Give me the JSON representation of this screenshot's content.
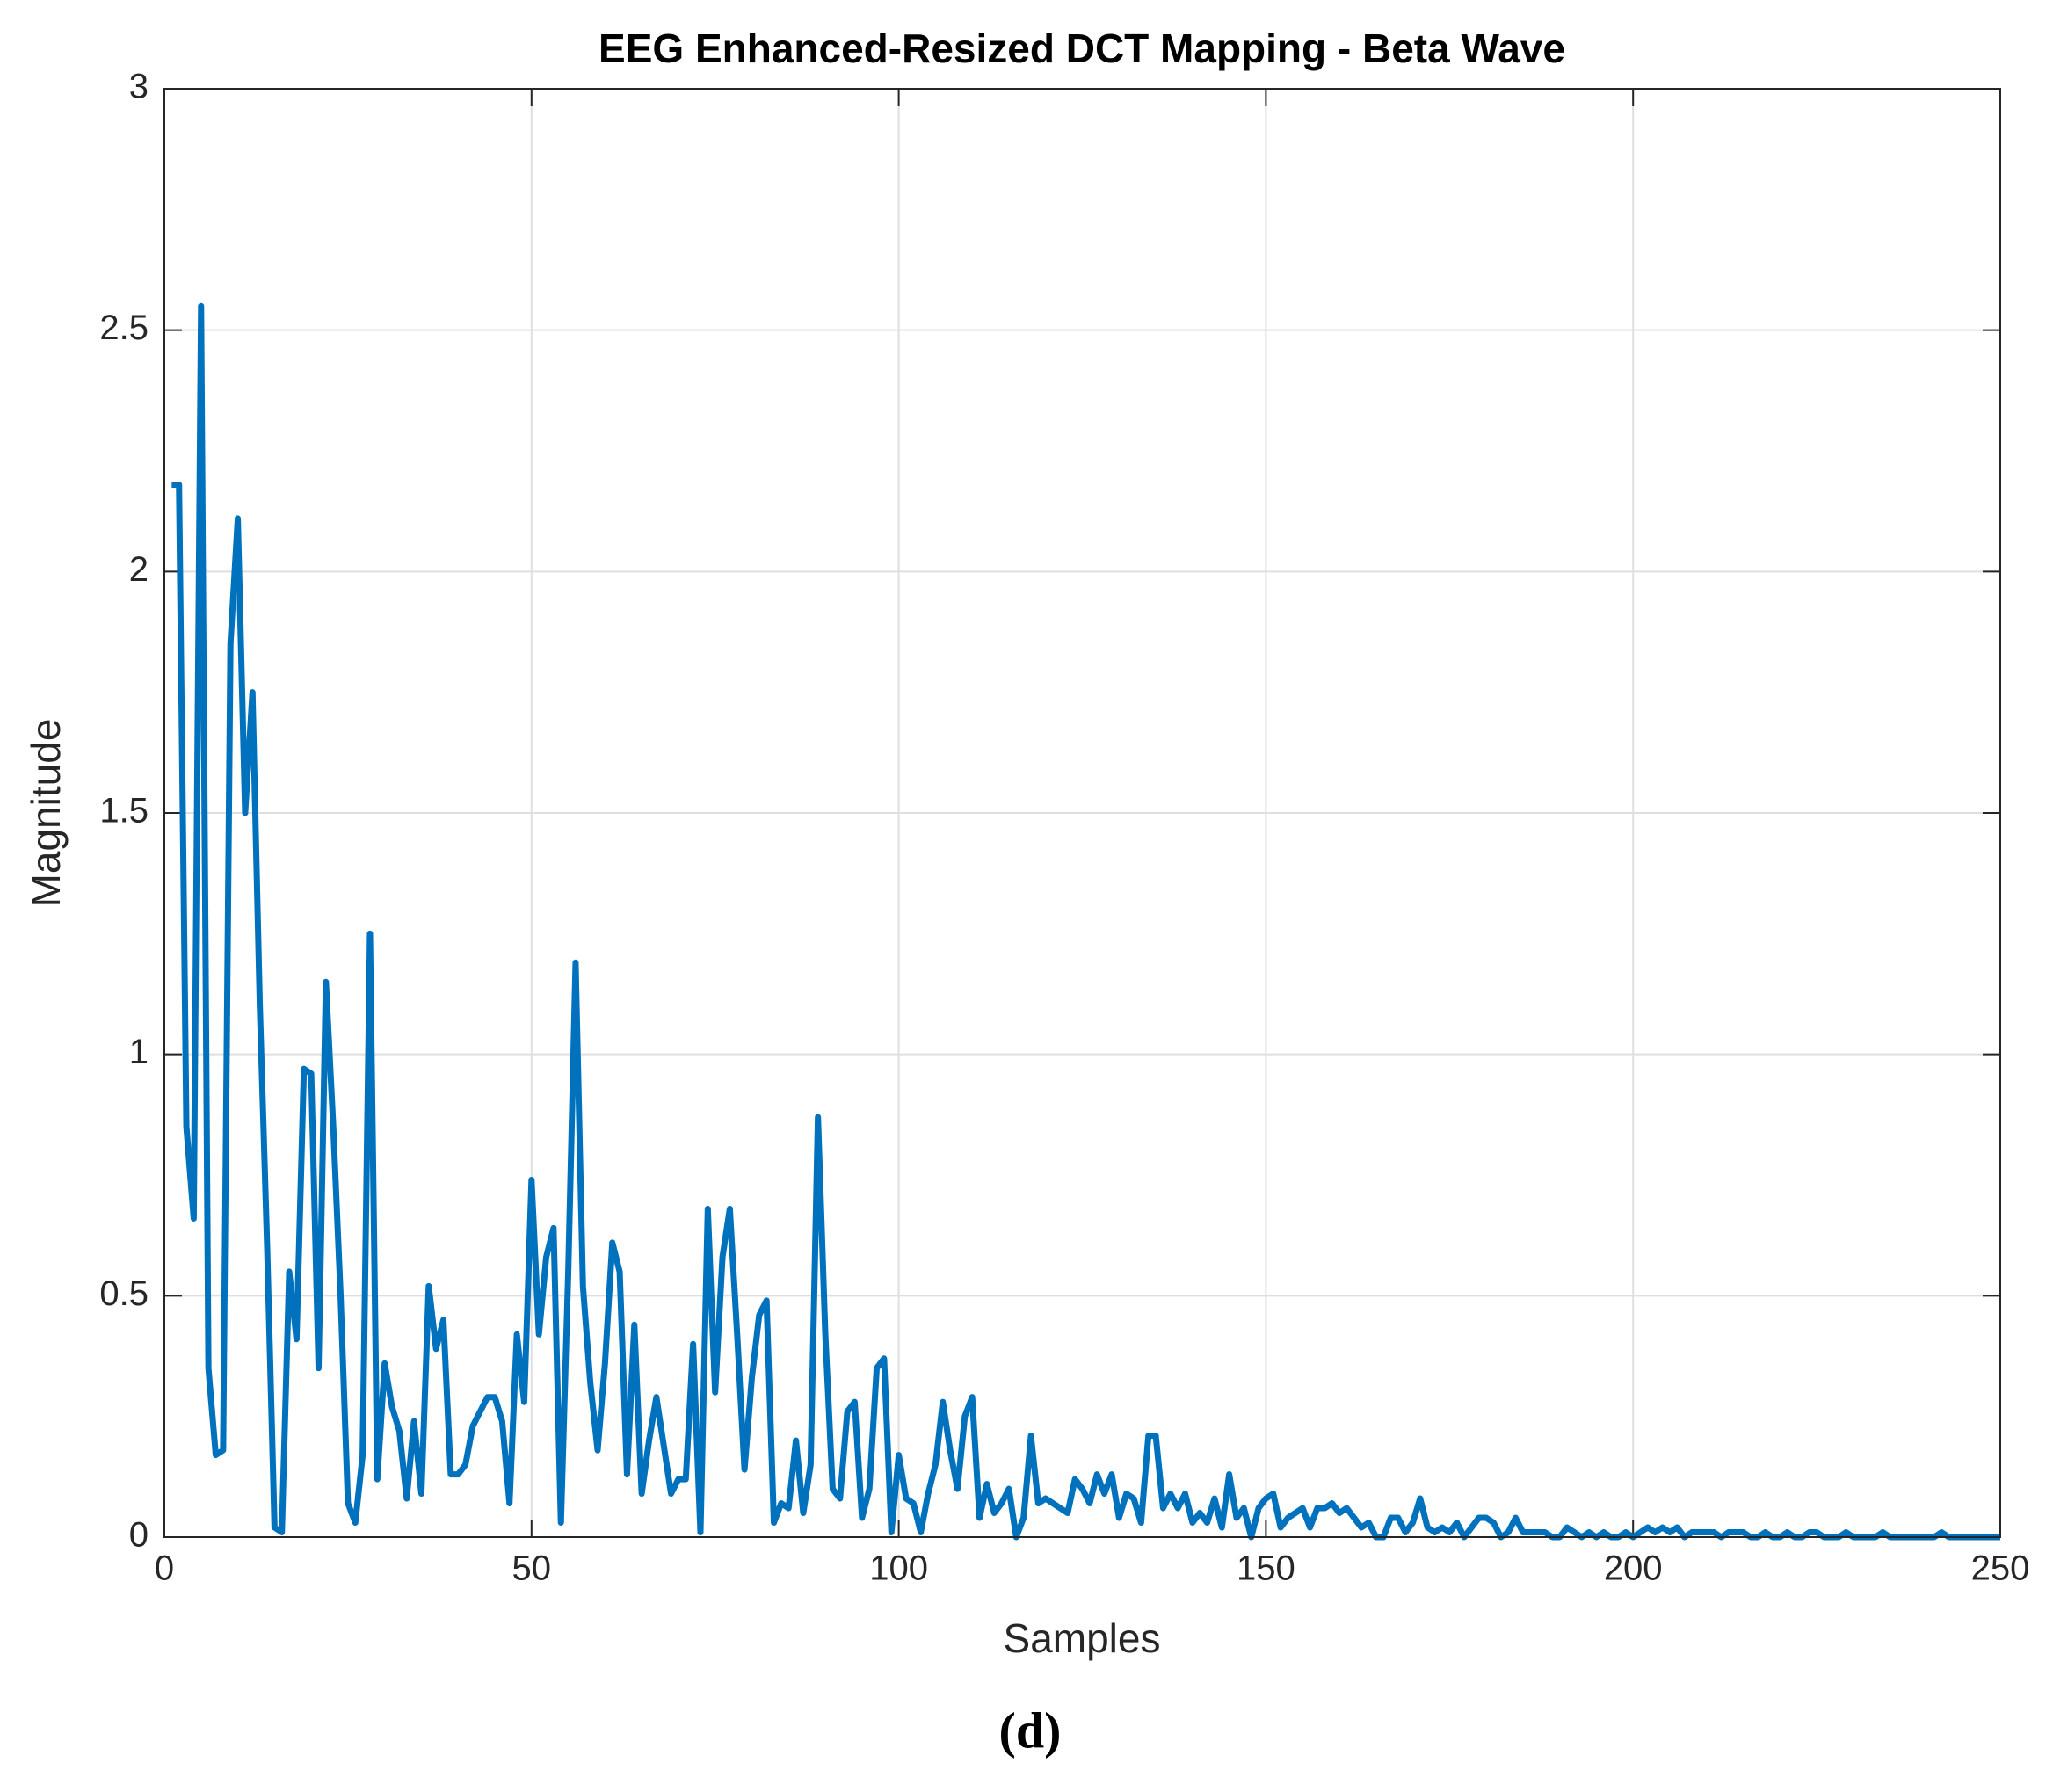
{
  "chart_data": {
    "type": "line",
    "title": "EEG Enhanced-Resized DCT Mapping - Beta Wave",
    "xlabel": "Samples",
    "ylabel": "Magnitude",
    "caption": "(d)",
    "xlim": [
      0,
      250
    ],
    "xticks": [
      0,
      50,
      100,
      150,
      200,
      250
    ],
    "ylim": [
      0,
      3
    ],
    "yticks": [
      0,
      0.5,
      1,
      1.5,
      2,
      2.5,
      3
    ],
    "grid": true,
    "x": [
      1,
      2,
      3,
      4,
      5,
      6,
      7,
      8,
      9,
      10,
      11,
      12,
      13,
      14,
      15,
      16,
      17,
      18,
      19,
      20,
      21,
      22,
      23,
      24,
      25,
      26,
      27,
      28,
      29,
      30,
      31,
      32,
      33,
      34,
      35,
      36,
      37,
      38,
      39,
      40,
      41,
      42,
      43,
      44,
      45,
      46,
      47,
      48,
      49,
      50,
      51,
      52,
      53,
      54,
      55,
      56,
      57,
      58,
      59,
      60,
      61,
      62,
      63,
      64,
      65,
      66,
      67,
      68,
      69,
      70,
      71,
      72,
      73,
      74,
      75,
      76,
      77,
      78,
      79,
      80,
      81,
      82,
      83,
      84,
      85,
      86,
      87,
      88,
      89,
      90,
      91,
      92,
      93,
      94,
      95,
      96,
      97,
      98,
      99,
      100,
      101,
      102,
      103,
      104,
      105,
      106,
      107,
      108,
      109,
      110,
      111,
      112,
      113,
      114,
      115,
      116,
      117,
      118,
      119,
      120,
      121,
      122,
      123,
      124,
      125,
      126,
      127,
      128,
      129,
      130,
      131,
      132,
      133,
      134,
      135,
      136,
      137,
      138,
      139,
      140,
      141,
      142,
      143,
      144,
      145,
      146,
      147,
      148,
      149,
      150,
      151,
      152,
      153,
      154,
      155,
      156,
      157,
      158,
      159,
      160,
      161,
      162,
      163,
      164,
      165,
      166,
      167,
      168,
      169,
      170,
      171,
      172,
      173,
      174,
      175,
      176,
      177,
      178,
      179,
      180,
      181,
      182,
      183,
      184,
      185,
      186,
      187,
      188,
      189,
      190,
      191,
      192,
      193,
      194,
      195,
      196,
      197,
      198,
      199,
      200,
      201,
      202,
      203,
      204,
      205,
      206,
      207,
      208,
      209,
      210,
      211,
      212,
      213,
      214,
      215,
      216,
      217,
      218,
      219,
      220,
      221,
      222,
      223,
      224,
      225,
      226,
      227,
      228,
      229,
      230,
      231,
      232,
      233,
      234,
      235,
      236,
      237,
      238,
      239,
      240,
      241,
      242,
      243,
      244,
      245,
      246,
      247,
      248,
      249,
      250
    ],
    "series": [
      {
        "color": "#0072bd",
        "values": [
          2.18,
          2.18,
          0.85,
          0.66,
          2.55,
          0.35,
          0.17,
          0.18,
          1.85,
          2.11,
          1.5,
          1.75,
          1.1,
          0.6,
          0.02,
          0.01,
          0.55,
          0.41,
          0.97,
          0.96,
          0.35,
          1.15,
          0.85,
          0.5,
          0.07,
          0.03,
          0.17,
          1.25,
          0.12,
          0.36,
          0.27,
          0.22,
          0.08,
          0.24,
          0.09,
          0.52,
          0.39,
          0.45,
          0.13,
          0.13,
          0.15,
          0.23,
          0.26,
          0.29,
          0.29,
          0.24,
          0.07,
          0.42,
          0.28,
          0.74,
          0.42,
          0.58,
          0.64,
          0.03,
          0.55,
          1.19,
          0.52,
          0.32,
          0.18,
          0.36,
          0.61,
          0.55,
          0.13,
          0.44,
          0.09,
          0.2,
          0.29,
          0.19,
          0.09,
          0.12,
          0.12,
          0.4,
          0.01,
          0.68,
          0.3,
          0.58,
          0.68,
          0.42,
          0.14,
          0.33,
          0.46,
          0.49,
          0.03,
          0.07,
          0.06,
          0.2,
          0.05,
          0.15,
          0.87,
          0.42,
          0.1,
          0.08,
          0.26,
          0.28,
          0.04,
          0.1,
          0.35,
          0.37,
          0.01,
          0.17,
          0.08,
          0.07,
          0.01,
          0.09,
          0.15,
          0.28,
          0.18,
          0.1,
          0.25,
          0.29,
          0.04,
          0.11,
          0.05,
          0.07,
          0.1,
          0,
          0.04,
          0.21,
          0.07,
          0.08,
          0.07,
          0.06,
          0.05,
          0.12,
          0.1,
          0.07,
          0.13,
          0.09,
          0.13,
          0.04,
          0.09,
          0.08,
          0.03,
          0.21,
          0.21,
          0.06,
          0.09,
          0.06,
          0.09,
          0.03,
          0.05,
          0.03,
          0.08,
          0.02,
          0.13,
          0.04,
          0.06,
          0,
          0.06,
          0.08,
          0.09,
          0.02,
          0.04,
          0.05,
          0.06,
          0.02,
          0.06,
          0.06,
          0.07,
          0.05,
          0.06,
          0.04,
          0.02,
          0.03,
          0,
          0,
          0.04,
          0.04,
          0.01,
          0.03,
          0.08,
          0.02,
          0.01,
          0.02,
          0.01,
          0.03,
          0,
          0.02,
          0.04,
          0.04,
          0.03,
          0,
          0.01,
          0.04,
          0.01,
          0.01,
          0.01,
          0.01,
          0,
          0,
          0.02,
          0.01,
          0,
          0.01,
          0,
          0.01,
          0,
          0,
          0.01,
          0,
          0.01,
          0.02,
          0.01,
          0.02,
          0.01,
          0.02,
          0,
          0.01,
          0.01,
          0.01,
          0.01,
          0,
          0.01,
          0.01,
          0.01,
          0,
          0,
          0.01,
          0,
          0,
          0.01,
          0,
          0,
          0.01,
          0.01,
          0,
          0,
          0,
          0.01,
          0,
          0,
          0,
          0,
          0.01,
          0,
          0,
          0,
          0,
          0,
          0,
          0,
          0.01,
          0,
          0,
          0,
          0,
          0,
          0,
          0,
          0
        ]
      }
    ]
  }
}
